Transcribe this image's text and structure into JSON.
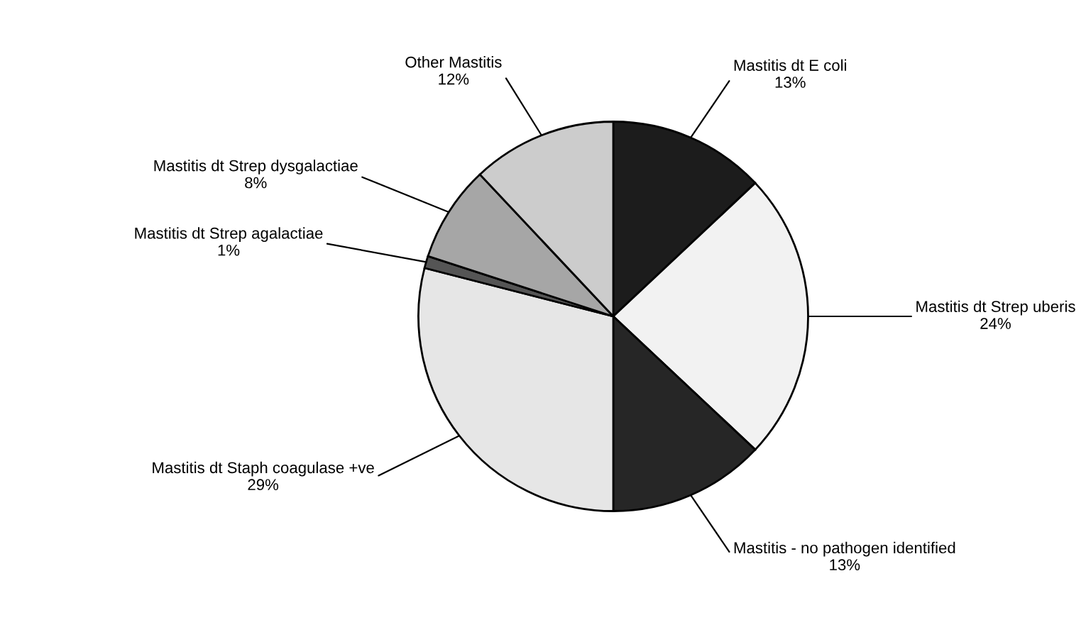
{
  "chart_data": {
    "type": "pie",
    "categories": [
      "Mastitis dt E coli",
      "Mastitis dt Strep uberis",
      "Mastitis - no pathogen identified",
      "Mastitis dt Staph coagulase +ve",
      "Mastitis dt Strep agalactiae",
      "Mastitis dt Strep dysgalactiae",
      "Other Mastitis"
    ],
    "values": [
      13,
      24,
      13,
      29,
      1,
      8,
      12
    ],
    "colors": [
      "#1c1c1c",
      "#f2f2f2",
      "#262626",
      "#e6e6e6",
      "#555555",
      "#a6a6a6",
      "#cccccc"
    ],
    "value_labels": [
      "13%",
      "24%",
      "13%",
      "29%",
      "1%",
      "8%",
      "12%"
    ]
  }
}
